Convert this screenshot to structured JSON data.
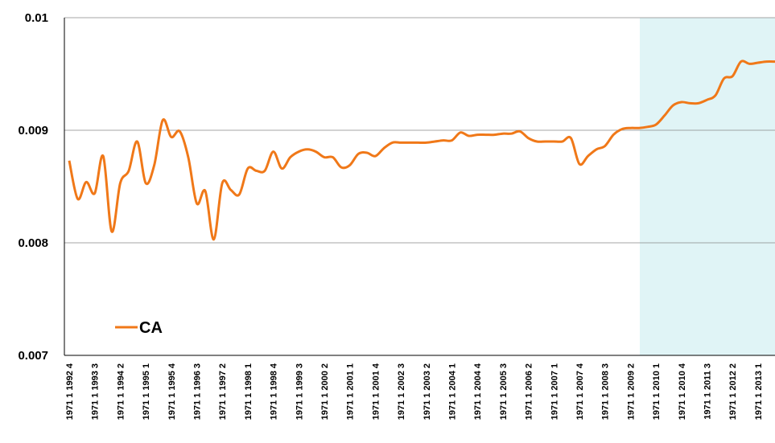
{
  "chart_data": {
    "type": "line",
    "categories": [
      "1971 1 1992 4",
      null,
      null,
      "1971 1 1993 3",
      null,
      null,
      "1971 1 1994 2",
      null,
      null,
      "1971 1 1995 1",
      null,
      null,
      "1971 1 1995 4",
      null,
      null,
      "1971 1 1996 3",
      null,
      null,
      "1971 1 1997 2",
      null,
      null,
      "1971 1 1998 1",
      null,
      null,
      "1971 1 1998 4",
      null,
      null,
      "1971 1 1999 3",
      null,
      null,
      "1971 1 2000 2",
      null,
      null,
      "1971 1 2001 1",
      null,
      null,
      "1971 1 2001 4",
      null,
      null,
      "1971 1 2002 3",
      null,
      null,
      "1971 1 2003 2",
      null,
      null,
      "1971 1 2004 1",
      null,
      null,
      "1971 1 2004 4",
      null,
      null,
      "1971 1 2005 3",
      null,
      null,
      "1971 1 2006 2",
      null,
      null,
      "1971 1 2007 1",
      null,
      null,
      "1971 1 2007 4",
      null,
      null,
      "1971 1 2008 3",
      null,
      null,
      "1971 1 2009 2",
      null,
      null,
      "1971 1 2010 1",
      null,
      null,
      "1971 1 2010 4",
      null,
      null,
      "1971 1 2011 3",
      null,
      null,
      "1971 1 2012 2",
      null,
      null,
      "1971 1 2013 1",
      null,
      null
    ],
    "series": [
      {
        "name": "CA",
        "color": "#f07818",
        "values": [
          0.00873,
          0.00839,
          0.00854,
          0.00844,
          0.00877,
          0.0081,
          0.00853,
          0.00864,
          0.0089,
          0.00853,
          0.00869,
          0.00909,
          0.00894,
          0.00899,
          0.00876,
          0.00835,
          0.00846,
          0.00803,
          0.00853,
          0.00847,
          0.00843,
          0.00866,
          0.00864,
          0.00864,
          0.00881,
          0.00866,
          0.00876,
          0.00881,
          0.00883,
          0.00881,
          0.00876,
          0.00876,
          0.00867,
          0.00869,
          0.00879,
          0.0088,
          0.00877,
          0.00884,
          0.00889,
          0.00889,
          0.00889,
          0.00889,
          0.00889,
          0.0089,
          0.00891,
          0.00891,
          0.00898,
          0.00895,
          0.00896,
          0.00896,
          0.00896,
          0.00897,
          0.00897,
          0.00899,
          0.00893,
          0.0089,
          0.0089,
          0.0089,
          0.0089,
          0.00893,
          0.0087,
          0.00877,
          0.00883,
          0.00886,
          0.00896,
          0.00901,
          0.00902,
          0.00902,
          0.00903,
          0.00905,
          0.00913,
          0.00922,
          0.00925,
          0.00924,
          0.00924,
          0.00927,
          0.00931,
          0.00946,
          0.00948,
          0.00961,
          0.00959,
          0.0096,
          0.00961,
          0.00961
        ]
      }
    ],
    "ylim": [
      0.007,
      0.01
    ],
    "yticks": [
      0.007,
      0.008,
      0.009,
      0.01
    ],
    "grid": true,
    "legend": "lower left"
  }
}
